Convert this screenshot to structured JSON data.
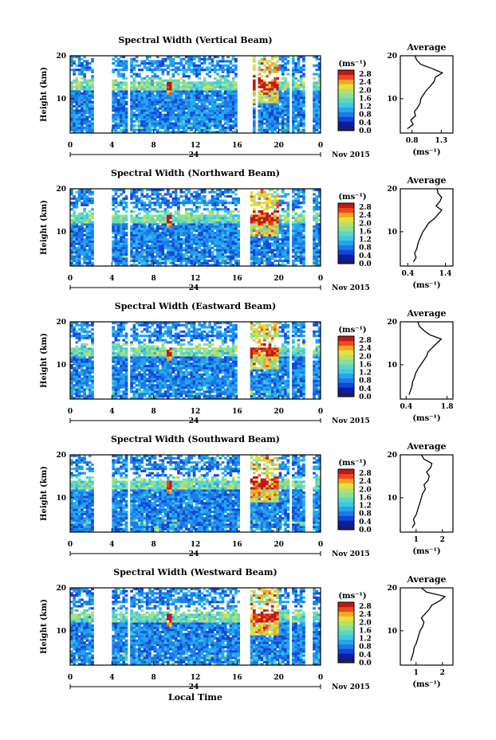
{
  "figure": {
    "x_axis_label": "Local Time",
    "date_label": "Nov 2015",
    "day_label": "24",
    "colorbar_unit": "(ms⁻¹)",
    "colorbar_ticks": [
      "0.0",
      "0.4",
      "0.8",
      "1.2",
      "1.6",
      "2.0",
      "2.4",
      "2.8"
    ],
    "colorbar_colors": [
      "#1b1b6e",
      "#0a1ea8",
      "#1246d8",
      "#1c7ae6",
      "#24a6ee",
      "#3ec8e6",
      "#5cd8c0",
      "#8ae098",
      "#b8e068",
      "#e8e038",
      "#f6a424",
      "#ec4a1c",
      "#c01818"
    ]
  },
  "chart_data": [
    {
      "type": "heatmap",
      "title": "Spectral Width (Vertical Beam)",
      "ylabel": "Height (km)",
      "ylim": [
        2,
        20
      ],
      "y_ticks": [
        "10",
        "20"
      ],
      "x_ticks": [
        "0",
        "4",
        "8",
        "12",
        "16",
        "20",
        "0"
      ],
      "xlim": [
        0,
        24
      ],
      "colorbar_range": [
        0,
        3.0
      ],
      "data_gaps_hours": [
        [
          2.3,
          4.0
        ],
        [
          5.4,
          5.7
        ],
        [
          16.0,
          17.5
        ],
        [
          17.85,
          18.1
        ],
        [
          21.0,
          21.3
        ],
        [
          22.5,
          23.3
        ]
      ],
      "average_profile": {
        "title": "Average",
        "xlabel": "(ms⁻¹)",
        "x_ticks": [
          "0.8",
          "1.3"
        ],
        "x_tick_values": [
          0.8,
          1.3
        ],
        "xlim": [
          0.6,
          1.5
        ],
        "y_ticks": [
          "10",
          "20"
        ],
        "ylim": [
          2,
          20
        ],
        "height_km": [
          3,
          4,
          5,
          6,
          7,
          8,
          9,
          10,
          11,
          12,
          13,
          14,
          15,
          16,
          17,
          18,
          19,
          20
        ],
        "width_ms": [
          0.72,
          0.82,
          0.78,
          0.86,
          0.84,
          0.9,
          0.94,
          0.95,
          1.0,
          1.05,
          1.12,
          1.18,
          1.2,
          1.32,
          1.15,
          0.95,
          0.88,
          0.85
        ]
      }
    },
    {
      "type": "heatmap",
      "title": "Spectral Width (Northward Beam)",
      "ylabel": "Height (km)",
      "ylim": [
        2,
        20
      ],
      "y_ticks": [
        "10",
        "20"
      ],
      "x_ticks": [
        "0",
        "4",
        "8",
        "12",
        "16",
        "20",
        "0"
      ],
      "xlim": [
        0,
        24
      ],
      "colorbar_range": [
        0,
        3.0
      ],
      "data_gaps_hours": [
        [
          2.3,
          4.0
        ],
        [
          5.4,
          5.7
        ],
        [
          16.3,
          17.3
        ],
        [
          21.0,
          21.3
        ],
        [
          22.5,
          23.3
        ]
      ],
      "average_profile": {
        "title": "Average",
        "xlabel": "(ms⁻¹)",
        "x_ticks": [
          "0.4",
          "1.4"
        ],
        "x_tick_values": [
          0.4,
          1.4
        ],
        "xlim": [
          0.2,
          1.6
        ],
        "y_ticks": [
          "10",
          "20"
        ],
        "ylim": [
          2,
          20
        ],
        "height_km": [
          3,
          4,
          5,
          6,
          7,
          8,
          9,
          10,
          11,
          12,
          13,
          14,
          15,
          16,
          17,
          18,
          19,
          20
        ],
        "width_ms": [
          0.55,
          0.62,
          0.58,
          0.64,
          0.66,
          0.7,
          0.75,
          0.8,
          0.88,
          0.95,
          1.1,
          1.2,
          1.3,
          1.15,
          1.25,
          1.3,
          1.2,
          1.18
        ]
      }
    },
    {
      "type": "heatmap",
      "title": "Spectral Width (Eastward Beam)",
      "ylabel": "Height (km)",
      "ylim": [
        2,
        20
      ],
      "y_ticks": [
        "10",
        "20"
      ],
      "x_ticks": [
        "0",
        "4",
        "8",
        "12",
        "16",
        "20",
        "0"
      ],
      "xlim": [
        0,
        24
      ],
      "colorbar_range": [
        0,
        3.0
      ],
      "data_gaps_hours": [
        [
          2.3,
          4.0
        ],
        [
          5.4,
          5.7
        ],
        [
          16.0,
          17.3
        ],
        [
          21.0,
          21.3
        ],
        [
          22.5,
          23.3
        ]
      ],
      "average_profile": {
        "title": "Average",
        "xlabel": "(ms⁻¹)",
        "x_ticks": [
          "0.4",
          "1.8"
        ],
        "x_tick_values": [
          0.4,
          1.8
        ],
        "xlim": [
          0.2,
          2.0
        ],
        "y_ticks": [
          "10",
          "20"
        ],
        "ylim": [
          2,
          20
        ],
        "height_km": [
          3,
          4,
          5,
          6,
          7,
          8,
          9,
          10,
          11,
          12,
          13,
          14,
          15,
          16,
          17,
          18,
          19,
          20
        ],
        "width_ms": [
          0.5,
          0.55,
          0.6,
          0.62,
          0.68,
          0.72,
          0.8,
          0.9,
          1.0,
          1.1,
          1.15,
          1.3,
          1.45,
          1.6,
          1.2,
          1.0,
          0.85,
          0.8
        ]
      }
    },
    {
      "type": "heatmap",
      "title": "Spectral Width (Southward Beam)",
      "ylabel": "Height (km)",
      "ylim": [
        2,
        20
      ],
      "y_ticks": [
        "10",
        "20"
      ],
      "x_ticks": [
        "0",
        "4",
        "8",
        "12",
        "16",
        "20",
        "0"
      ],
      "xlim": [
        0,
        24
      ],
      "colorbar_range": [
        0,
        3.0
      ],
      "data_gaps_hours": [
        [
          2.3,
          4.0
        ],
        [
          5.4,
          5.7
        ],
        [
          16.3,
          17.3
        ],
        [
          21.0,
          21.3
        ],
        [
          22.5,
          23.3
        ]
      ],
      "average_profile": {
        "title": "Average",
        "xlabel": "(ms⁻¹)",
        "x_ticks": [
          "1",
          "2"
        ],
        "x_tick_values": [
          1,
          2
        ],
        "xlim": [
          0.4,
          2.4
        ],
        "y_ticks": [
          "10",
          "20"
        ],
        "ylim": [
          2,
          20
        ],
        "height_km": [
          3,
          4,
          5,
          6,
          7,
          8,
          9,
          10,
          11,
          12,
          13,
          14,
          15,
          16,
          17,
          18,
          19,
          20
        ],
        "width_ms": [
          0.85,
          0.95,
          0.9,
          1.0,
          1.05,
          1.1,
          1.15,
          1.2,
          1.25,
          1.35,
          1.3,
          1.45,
          1.5,
          1.4,
          1.55,
          1.6,
          1.3,
          1.2
        ]
      }
    },
    {
      "type": "heatmap",
      "title": "Spectral Width (Westward Beam)",
      "ylabel": "Height (km)",
      "ylim": [
        2,
        20
      ],
      "y_ticks": [
        "10",
        "20"
      ],
      "x_ticks": [
        "0",
        "4",
        "8",
        "12",
        "16",
        "20",
        "0"
      ],
      "xlim": [
        0,
        24
      ],
      "colorbar_range": [
        0,
        3.0
      ],
      "data_gaps_hours": [
        [
          2.3,
          4.0
        ],
        [
          5.4,
          5.7
        ],
        [
          16.3,
          17.3
        ],
        [
          21.0,
          21.3
        ],
        [
          22.5,
          23.3
        ]
      ],
      "average_profile": {
        "title": "Average",
        "xlabel": "(ms⁻¹)",
        "x_ticks": [
          "1",
          "2"
        ],
        "x_tick_values": [
          1,
          2
        ],
        "xlim": [
          0.4,
          2.4
        ],
        "y_ticks": [
          "10",
          "20"
        ],
        "ylim": [
          2,
          20
        ],
        "height_km": [
          3,
          4,
          5,
          6,
          7,
          8,
          9,
          10,
          11,
          12,
          13,
          14,
          15,
          16,
          17,
          18,
          19,
          20
        ],
        "width_ms": [
          0.8,
          0.85,
          0.9,
          0.92,
          1.0,
          1.05,
          1.1,
          1.15,
          1.25,
          1.3,
          1.2,
          1.35,
          1.5,
          1.6,
          1.9,
          2.1,
          1.4,
          1.2
        ]
      }
    }
  ]
}
